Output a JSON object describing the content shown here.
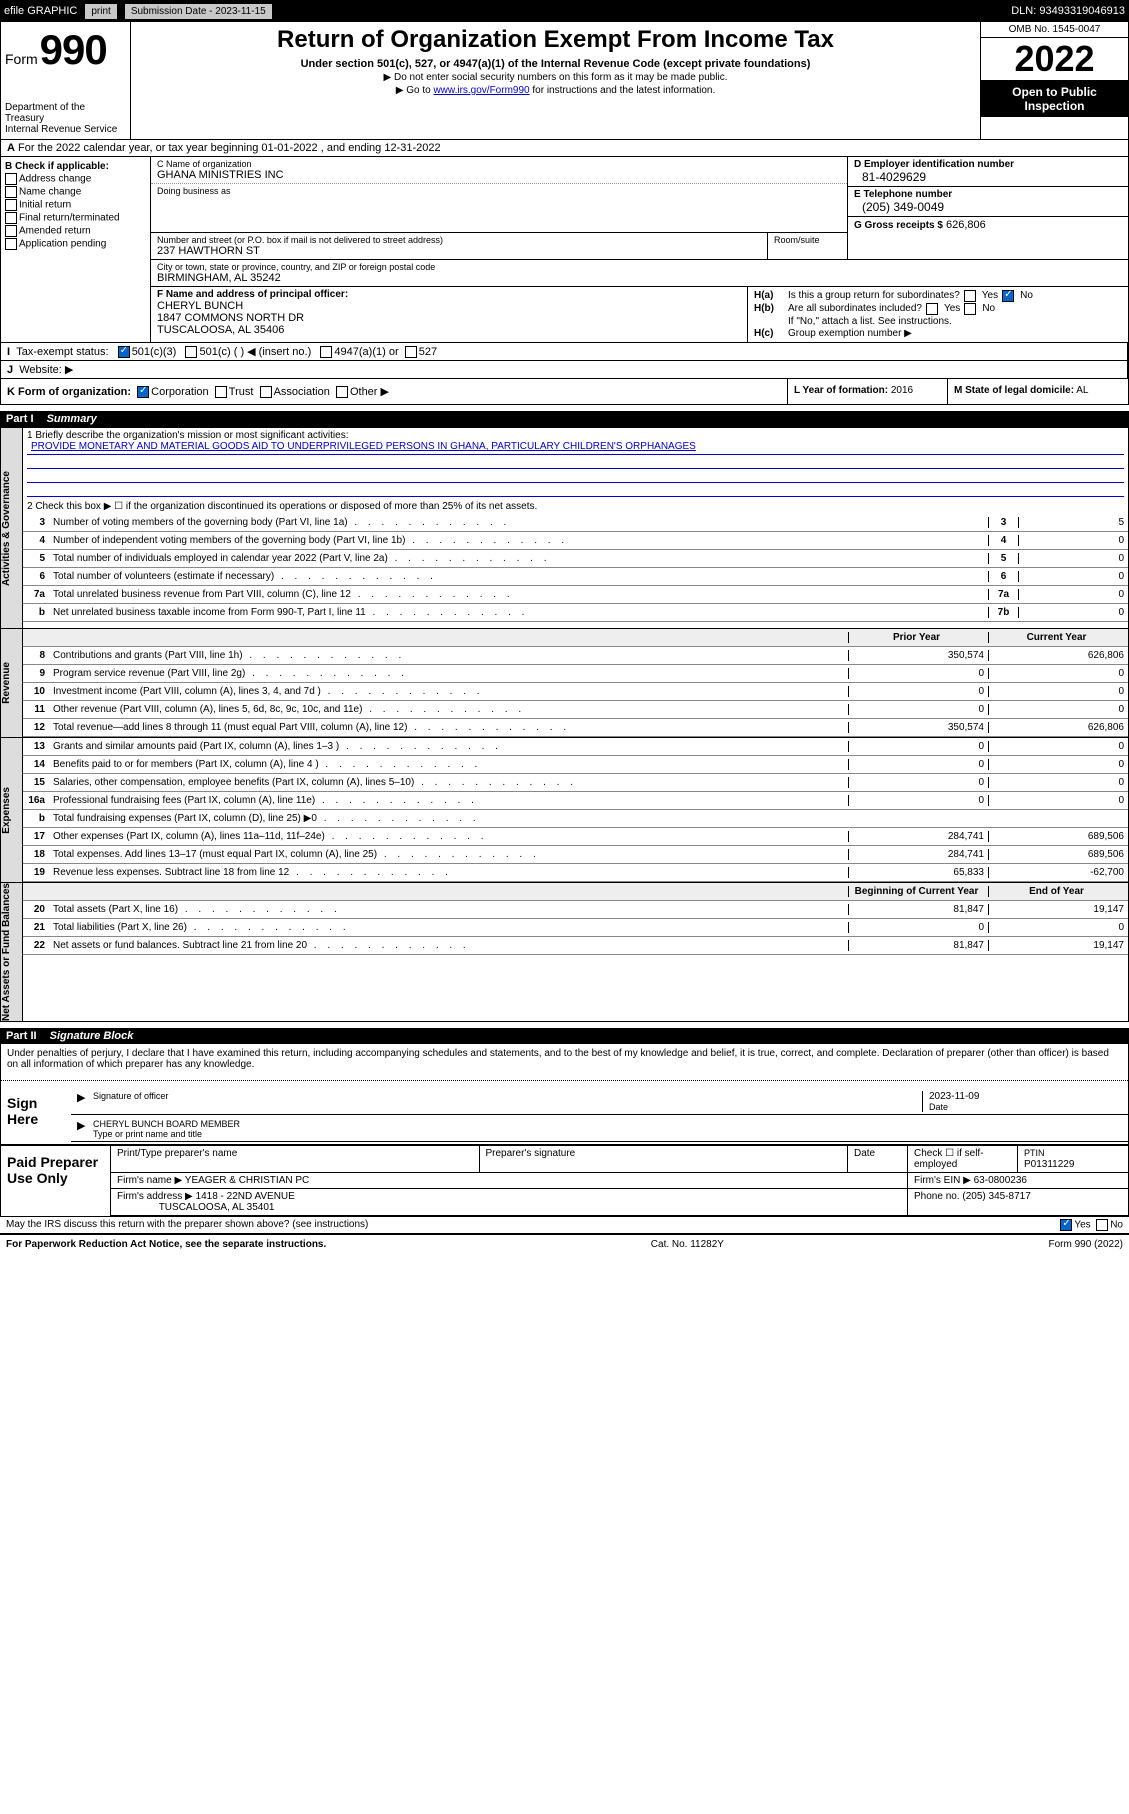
{
  "topbar": {
    "efile": "efile GRAPHIC",
    "print": "print",
    "submission_label": "Submission Date - 2023-11-15",
    "dln": "DLN: 93493319046913"
  },
  "header": {
    "form_word": "Form",
    "form_num": "990",
    "dept": "Department of the Treasury",
    "irs": "Internal Revenue Service",
    "title": "Return of Organization Exempt From Income Tax",
    "sub": "Under section 501(c), 527, or 4947(a)(1) of the Internal Revenue Code (except private foundations)",
    "note1": "▶ Do not enter social security numbers on this form as it may be made public.",
    "note2_pre": "▶ Go to ",
    "note2_link": "www.irs.gov/Form990",
    "note2_post": " for instructions and the latest information.",
    "omb": "OMB No. 1545-0047",
    "year": "2022",
    "inspection": "Open to Public Inspection"
  },
  "row_a": {
    "label": "A",
    "text": "For the 2022 calendar year, or tax year beginning 01-01-2022    , and ending 12-31-2022"
  },
  "section_b": {
    "label": "B Check if applicable:",
    "opts": [
      "Address change",
      "Name change",
      "Initial return",
      "Final return/terminated",
      "Amended return",
      "Application pending"
    ]
  },
  "section_c": {
    "label_name": "C Name of organization",
    "org_name": "GHANA MINISTRIES INC",
    "dba_label": "Doing business as",
    "dba": "",
    "street_label": "Number and street (or P.O. box if mail is not delivered to street address)",
    "street": "237 HAWTHORN ST",
    "room_label": "Room/suite",
    "city_label": "City or town, state or province, country, and ZIP or foreign postal code",
    "city": "BIRMINGHAM, AL  35242"
  },
  "section_d": {
    "label": "D Employer identification number",
    "val": "81-4029629"
  },
  "section_e": {
    "label": "E Telephone number",
    "val": "(205) 349-0049"
  },
  "section_g": {
    "label": "G Gross receipts $",
    "val": "626,806"
  },
  "section_f": {
    "label": "F  Name and address of principal officer:",
    "name": "CHERYL BUNCH",
    "addr1": "1847 COMMONS NORTH DR",
    "addr2": "TUSCALOOSA, AL  35406"
  },
  "section_h": {
    "ha": "Is this a group return for subordinates?",
    "ha_no": true,
    "hb": "Are all subordinates included?",
    "hb_note": "If \"No,\" attach a list. See instructions.",
    "hc": "Group exemption number ▶"
  },
  "row_i": {
    "label": "I",
    "text": "Tax-exempt status:",
    "opts": [
      "501(c)(3)",
      "501(c) (   ) ◀ (insert no.)",
      "4947(a)(1) or",
      "527"
    ],
    "checked": 0
  },
  "row_j": {
    "label": "J",
    "text": "Website: ▶"
  },
  "row_k": {
    "label": "K Form of organization:",
    "opts": [
      "Corporation",
      "Trust",
      "Association",
      "Other ▶"
    ],
    "checked": 0
  },
  "row_l": {
    "label": "L Year of formation:",
    "val": "2016"
  },
  "row_m": {
    "label": "M State of legal domicile:",
    "val": "AL"
  },
  "part1": {
    "header": "Part I",
    "title": "Summary",
    "line1_label": "1  Briefly describe the organization's mission or most significant activities:",
    "mission": "PROVIDE MONETARY AND MATERIAL GOODS AID TO UNDERPRIVILEGED PERSONS IN GHANA, PARTICULARY CHILDREN'S ORPHANAGES",
    "line2": "2   Check this box ▶ ☐  if the organization discontinued its operations or disposed of more than 25% of its net assets.",
    "side_gov": "Activities & Governance",
    "side_rev": "Revenue",
    "side_exp": "Expenses",
    "side_net": "Net Assets or Fund Balances",
    "gov_rows": [
      {
        "n": "3",
        "d": "Number of voting members of the governing body (Part VI, line 1a)",
        "box": "3",
        "v": "5"
      },
      {
        "n": "4",
        "d": "Number of independent voting members of the governing body (Part VI, line 1b)",
        "box": "4",
        "v": "0"
      },
      {
        "n": "5",
        "d": "Total number of individuals employed in calendar year 2022 (Part V, line 2a)",
        "box": "5",
        "v": "0"
      },
      {
        "n": "6",
        "d": "Total number of volunteers (estimate if necessary)",
        "box": "6",
        "v": "0"
      },
      {
        "n": "7a",
        "d": "Total unrelated business revenue from Part VIII, column (C), line 12",
        "box": "7a",
        "v": "0"
      },
      {
        "n": "b",
        "d": "Net unrelated business taxable income from Form 990-T, Part I, line 11",
        "box": "7b",
        "v": "0"
      }
    ],
    "two_col_h": {
      "prior": "Prior Year",
      "current": "Current Year"
    },
    "rev_rows": [
      {
        "n": "8",
        "d": "Contributions and grants (Part VIII, line 1h)",
        "p": "350,574",
        "c": "626,806"
      },
      {
        "n": "9",
        "d": "Program service revenue (Part VIII, line 2g)",
        "p": "0",
        "c": "0"
      },
      {
        "n": "10",
        "d": "Investment income (Part VIII, column (A), lines 3, 4, and 7d )",
        "p": "0",
        "c": "0"
      },
      {
        "n": "11",
        "d": "Other revenue (Part VIII, column (A), lines 5, 6d, 8c, 9c, 10c, and 11e)",
        "p": "0",
        "c": "0"
      },
      {
        "n": "12",
        "d": "Total revenue—add lines 8 through 11 (must equal Part VIII, column (A), line 12)",
        "p": "350,574",
        "c": "626,806"
      }
    ],
    "exp_rows": [
      {
        "n": "13",
        "d": "Grants and similar amounts paid (Part IX, column (A), lines 1–3 )",
        "p": "0",
        "c": "0"
      },
      {
        "n": "14",
        "d": "Benefits paid to or for members (Part IX, column (A), line 4 )",
        "p": "0",
        "c": "0"
      },
      {
        "n": "15",
        "d": "Salaries, other compensation, employee benefits (Part IX, column (A), lines 5–10)",
        "p": "0",
        "c": "0"
      },
      {
        "n": "16a",
        "d": "Professional fundraising fees (Part IX, column (A), line 11e)",
        "p": "0",
        "c": "0"
      },
      {
        "n": "b",
        "d": "Total fundraising expenses (Part IX, column (D), line 25) ▶0",
        "p": "",
        "c": "",
        "shaded": true
      },
      {
        "n": "17",
        "d": "Other expenses (Part IX, column (A), lines 11a–11d, 11f–24e)",
        "p": "284,741",
        "c": "689,506"
      },
      {
        "n": "18",
        "d": "Total expenses. Add lines 13–17 (must equal Part IX, column (A), line 25)",
        "p": "284,741",
        "c": "689,506"
      },
      {
        "n": "19",
        "d": "Revenue less expenses. Subtract line 18 from line 12",
        "p": "65,833",
        "c": "-62,700"
      }
    ],
    "net_h": {
      "begin": "Beginning of Current Year",
      "end": "End of Year"
    },
    "net_rows": [
      {
        "n": "20",
        "d": "Total assets (Part X, line 16)",
        "p": "81,847",
        "c": "19,147"
      },
      {
        "n": "21",
        "d": "Total liabilities (Part X, line 26)",
        "p": "0",
        "c": "0"
      },
      {
        "n": "22",
        "d": "Net assets or fund balances. Subtract line 21 from line 20",
        "p": "81,847",
        "c": "19,147"
      }
    ]
  },
  "part2": {
    "header": "Part II",
    "title": "Signature Block",
    "decl": "Under penalties of perjury, I declare that I have examined this return, including accompanying schedules and statements, and to the best of my knowledge and belief, it is true, correct, and complete. Declaration of preparer (other than officer) is based on all information of which preparer has any knowledge.",
    "sign_here": "Sign Here",
    "sig_officer_label": "Signature of officer",
    "sig_date": "2023-11-09",
    "sig_date_label": "Date",
    "officer_name": "CHERYL BUNCH  BOARD MEMBER",
    "officer_label": "Type or print name and title"
  },
  "preparer": {
    "label": "Paid Preparer Use Only",
    "h": [
      "Print/Type preparer's name",
      "Preparer's signature",
      "Date",
      "",
      "PTIN"
    ],
    "check_label": "Check ☐ if self-employed",
    "ptin": "P01311229",
    "firm_name_label": "Firm's name      ▶",
    "firm_name": "YEAGER & CHRISTIAN PC",
    "firm_ein_label": "Firm's EIN ▶",
    "firm_ein": "63-0800236",
    "firm_addr_label": "Firm's address ▶",
    "firm_addr": "1418 - 22ND AVENUE",
    "firm_city": "TUSCALOOSA, AL  35401",
    "phone_label": "Phone no.",
    "phone": "(205) 345-8717"
  },
  "bottom": {
    "discuss": "May the IRS discuss this return with the preparer shown above? (see instructions)",
    "yes_checked": true,
    "paperwork": "For Paperwork Reduction Act Notice, see the separate instructions.",
    "cat": "Cat. No. 11282Y",
    "form": "Form 990 (2022)"
  }
}
